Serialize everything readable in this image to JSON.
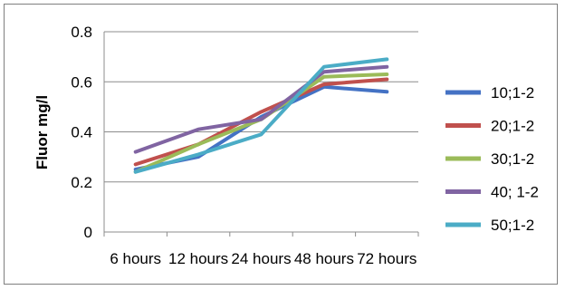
{
  "chart_data": {
    "type": "line",
    "title": "",
    "xlabel": "",
    "ylabel": "Fluor mg/l",
    "categories": [
      "6 hours",
      "12 hours",
      "24 hours",
      "48 hours",
      "72 hours"
    ],
    "ylim": [
      0,
      0.8
    ],
    "yticks": [
      0,
      0.2,
      0.4,
      0.6,
      0.8
    ],
    "ytick_labels": [
      "0",
      "0.2",
      "0.4",
      "0.6",
      "0.8"
    ],
    "grid": "horizontal",
    "legend_position": "right",
    "series": [
      {
        "name": "10;1-2",
        "color": "#4472c4",
        "values": [
          0.25,
          0.3,
          0.46,
          0.58,
          0.56
        ]
      },
      {
        "name": "20;1-2",
        "color": "#c0504d",
        "values": [
          0.27,
          0.35,
          0.48,
          0.59,
          0.61
        ]
      },
      {
        "name": "30;1-2",
        "color": "#9bbb59",
        "values": [
          0.24,
          0.35,
          0.45,
          0.62,
          0.63
        ]
      },
      {
        "name": "40; 1-2",
        "color": "#8064a2",
        "values": [
          0.32,
          0.41,
          0.45,
          0.64,
          0.66
        ]
      },
      {
        "name": "50;1-2",
        "color": "#4bacc6",
        "values": [
          0.24,
          0.31,
          0.39,
          0.66,
          0.69
        ]
      }
    ]
  }
}
